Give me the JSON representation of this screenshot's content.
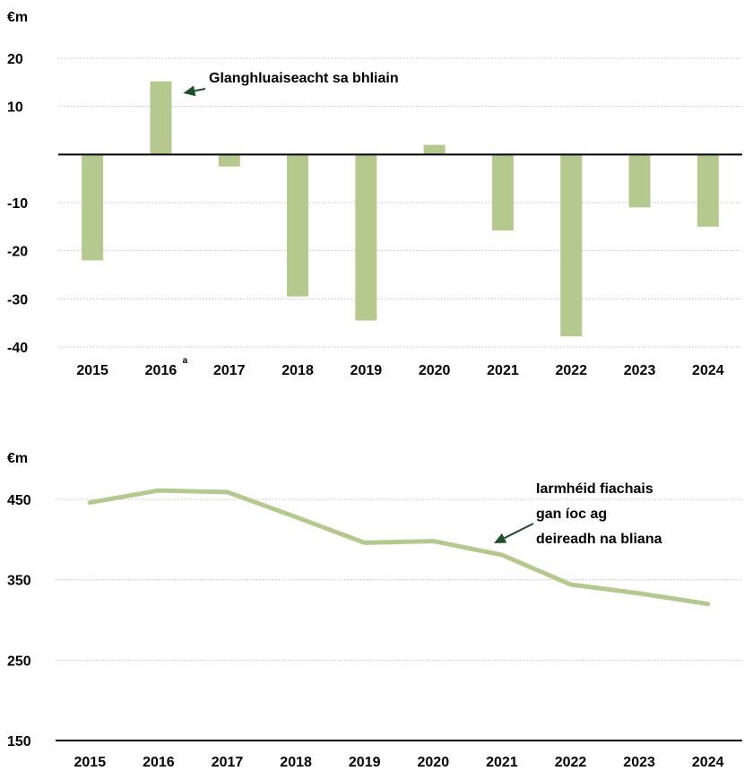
{
  "colors": {
    "bar": "#b5c98e",
    "line": "#b5c98e",
    "arrow": "#1f4e2b",
    "axis": "#000000",
    "grid": "#bdbdbd"
  },
  "chart_data": [
    {
      "type": "bar",
      "unit_label": "€m",
      "categories": [
        "2015",
        "2016",
        "2017",
        "2018",
        "2019",
        "2020",
        "2021",
        "2022",
        "2023",
        "2024"
      ],
      "category_superscripts": [
        "",
        "a",
        "",
        "",
        "",
        "",
        "",
        "",
        "",
        ""
      ],
      "series": [
        {
          "values": [
            -22,
            15.2,
            -2.5,
            -29.5,
            -34.5,
            2,
            -15.8,
            -37.8,
            -11,
            -15
          ]
        }
      ],
      "ylim": [
        -40,
        20
      ],
      "yticks": [
        20,
        10,
        -10,
        -20,
        -30,
        -40
      ],
      "grid": true,
      "annotation": {
        "text": "Glanghluaiseacht sa bhliain",
        "arrow_to": {
          "x": "2016",
          "y": 12
        }
      }
    },
    {
      "type": "line",
      "unit_label": "€m",
      "categories": [
        "2015",
        "2016",
        "2017",
        "2018",
        "2019",
        "2020",
        "2021",
        "2022",
        "2023",
        "2024"
      ],
      "series": [
        {
          "values": [
            446,
            461,
            459,
            428,
            396,
            398,
            381,
            344,
            333,
            320
          ]
        }
      ],
      "ylim": [
        150,
        450
      ],
      "yticks": [
        450,
        350,
        250,
        150
      ],
      "grid": true,
      "annotation": {
        "lines": [
          "Iarmhéid fiachais",
          "gan íoc ag",
          "deireadh na bliana"
        ],
        "arrow_to": {
          "x": "2021",
          "y": 388
        }
      }
    }
  ]
}
